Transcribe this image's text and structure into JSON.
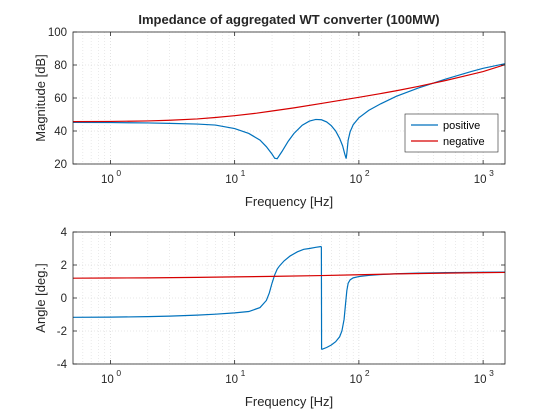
{
  "chart_data": [
    {
      "type": "line",
      "title": "Impedance of aggregated WT converter (100MW)",
      "xlabel": "Frequency [Hz]",
      "ylabel": "Magnitude [dB]",
      "xscale": "log",
      "xlim": [
        0.5,
        1500
      ],
      "ylim": [
        20,
        100
      ],
      "xticks": [
        1,
        10,
        100,
        1000
      ],
      "xtick_labels": [
        {
          "base": "10",
          "exp": "0"
        },
        {
          "base": "10",
          "exp": "1"
        },
        {
          "base": "10",
          "exp": "2"
        },
        {
          "base": "10",
          "exp": "3"
        }
      ],
      "yticks": [
        20,
        40,
        60,
        80,
        100
      ],
      "grid": true,
      "minor_grid": true,
      "legend": {
        "placement": "bottom-right",
        "entries": [
          "positive",
          "negative"
        ]
      },
      "series": [
        {
          "name": "positive",
          "color": "#0072BD",
          "x": [
            0.5,
            1,
            2,
            3,
            5,
            7,
            10,
            13,
            16,
            18,
            20,
            21,
            22,
            24,
            27,
            30,
            35,
            40,
            45,
            50,
            55,
            60,
            65,
            70,
            74,
            77,
            79,
            80,
            82,
            85,
            90,
            100,
            120,
            150,
            200,
            300,
            500,
            800,
            1000,
            1500
          ],
          "y": [
            45.2,
            45.1,
            44.9,
            44.6,
            44.2,
            43.6,
            41.5,
            38.5,
            34.5,
            30.5,
            26,
            23.5,
            23.2,
            27.5,
            33.8,
            38.5,
            43.5,
            46.0,
            47.0,
            46.8,
            45.5,
            43.2,
            40.0,
            35.5,
            31,
            26,
            23.3,
            26.5,
            34.5,
            39.5,
            43.8,
            48.0,
            52.5,
            56.5,
            61.0,
            66.0,
            71.5,
            76.0,
            78.0,
            80.8
          ]
        },
        {
          "name": "negative",
          "color": "#D60000",
          "x": [
            0.5,
            1,
            2,
            3,
            5,
            7,
            10,
            15,
            20,
            30,
            50,
            70,
            100,
            150,
            200,
            300,
            500,
            700,
            1000,
            1500
          ],
          "y": [
            45.7,
            45.8,
            46.1,
            46.5,
            47.3,
            48.2,
            49.3,
            50.8,
            52.1,
            54.0,
            56.7,
            58.5,
            60.4,
            62.7,
            64.4,
            67.0,
            70.6,
            73.2,
            76.0,
            80.2
          ]
        }
      ]
    },
    {
      "type": "line",
      "title": "",
      "xlabel": "Frequency [Hz]",
      "ylabel": "Angle [deg.]",
      "xscale": "log",
      "xlim": [
        0.5,
        1500
      ],
      "ylim": [
        -4,
        4
      ],
      "xticks": [
        1,
        10,
        100,
        1000
      ],
      "xtick_labels": [
        {
          "base": "10",
          "exp": "0"
        },
        {
          "base": "10",
          "exp": "1"
        },
        {
          "base": "10",
          "exp": "2"
        },
        {
          "base": "10",
          "exp": "3"
        }
      ],
      "yticks": [
        -4,
        -2,
        0,
        2,
        4
      ],
      "grid": true,
      "minor_grid": true,
      "series": [
        {
          "name": "positive",
          "color": "#0072BD",
          "segments": [
            {
              "x": [
                0.5,
                1,
                2,
                3,
                5,
                7,
                10,
                13,
                16,
                18,
                19,
                20,
                21,
                22,
                23,
                25,
                28,
                32,
                36,
                40,
                45,
                49.9
              ],
              "y": [
                -1.17,
                -1.16,
                -1.13,
                -1.1,
                -1.04,
                -0.98,
                -0.9,
                -0.82,
                -0.58,
                -0.15,
                0.3,
                0.9,
                1.4,
                1.75,
                1.95,
                2.25,
                2.55,
                2.8,
                2.95,
                3.0,
                3.07,
                3.12
              ]
            },
            {
              "x": [
                50.1,
                55,
                60,
                65,
                70,
                73,
                76,
                78,
                80,
                82,
                85,
                90,
                100,
                120,
                150,
                200,
                300,
                500,
                700,
                1000,
                1500
              ],
              "y": [
                -3.12,
                -3.0,
                -2.85,
                -2.65,
                -2.35,
                -2.0,
                -1.3,
                -0.4,
                0.45,
                0.9,
                1.1,
                1.22,
                1.3,
                1.37,
                1.42,
                1.47,
                1.51,
                1.54,
                1.55,
                1.56,
                1.57
              ]
            }
          ]
        },
        {
          "name": "negative",
          "color": "#D60000",
          "x": [
            0.5,
            1,
            2,
            5,
            10,
            20,
            50,
            100,
            200,
            500,
            1000,
            1500
          ],
          "y": [
            1.2,
            1.21,
            1.22,
            1.25,
            1.28,
            1.31,
            1.36,
            1.41,
            1.46,
            1.51,
            1.54,
            1.55
          ]
        }
      ]
    }
  ]
}
